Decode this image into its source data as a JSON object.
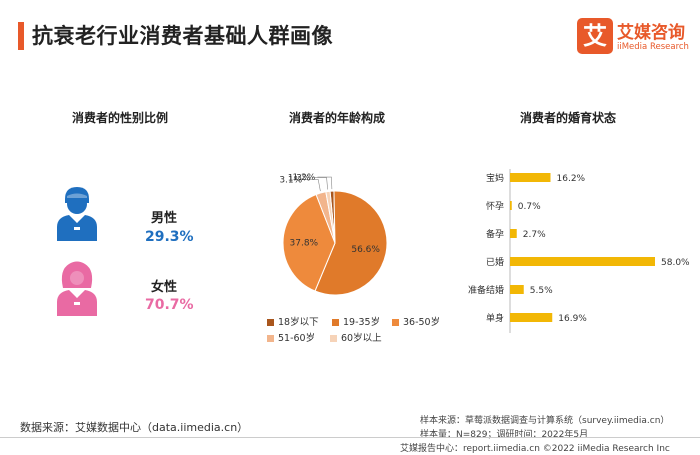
{
  "header": {
    "title": "抗衰老行业消费者基础人群画像",
    "brand_mark": "艾",
    "brand_cn": "艾媒咨询",
    "brand_en": "iiMedia Research"
  },
  "gender": {
    "title": "消费者的性别比例",
    "male_label": "男性",
    "male_value": "29.3%",
    "female_label": "女性",
    "female_value": "70.7%",
    "male_color": "#1f6fbf",
    "female_color": "#e96aa3"
  },
  "chart_data": [
    {
      "type": "pie",
      "title": "消费者的年龄构成",
      "categories": [
        "18岁以下",
        "19-35岁",
        "36-50岁",
        "51-60岁",
        "60岁以上"
      ],
      "values": [
        1.2,
        56.6,
        37.8,
        3.1,
        1.3
      ],
      "labels": [
        "1.2%",
        "56.6%",
        "37.8%",
        "3.1%",
        "1.3%"
      ],
      "colors": [
        "#a9561d",
        "#e07a2a",
        "#ee8a3c",
        "#f2b58c",
        "#f6d3b8"
      ],
      "legend_position": "bottom"
    },
    {
      "type": "bar",
      "orientation": "horizontal",
      "title": "消费者的婚育状态",
      "categories": [
        "宝妈",
        "怀孕",
        "备孕",
        "已婚",
        "准备结婚",
        "单身"
      ],
      "values": [
        16.2,
        0.7,
        2.7,
        58.0,
        5.5,
        16.9
      ],
      "labels": [
        "16.2%",
        "0.7%",
        "2.7%",
        "58.0%",
        "5.5%",
        "16.9%"
      ],
      "color": "#f2b705",
      "xlim": [
        0,
        60
      ]
    }
  ],
  "footer": {
    "source": "数据来源：艾媒数据中心（data.iimedia.cn）",
    "sample_source": "样本来源：草莓派数据调查与计算系统（survey.iimedia.cn）",
    "sample_info": "样本量：N=829；调研时间：2022年5月",
    "copyright": "艾媒报告中心：report.iimedia.cn ©2022  iiMedia Research  Inc"
  }
}
